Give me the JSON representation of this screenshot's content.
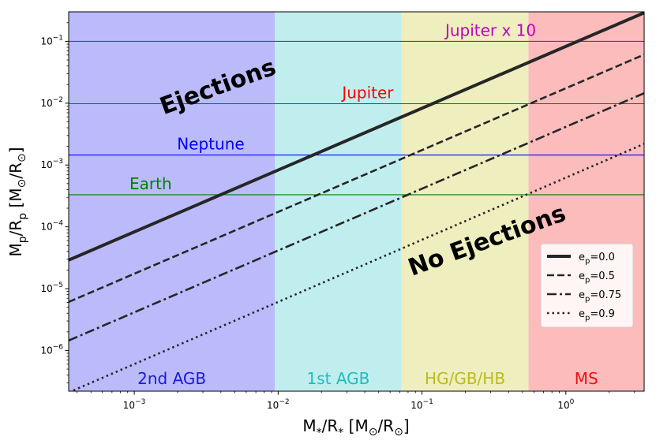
{
  "chart_data": {
    "type": "line",
    "x_scale": "log",
    "y_scale": "log",
    "xlim": [
      0.00035,
      3.5
    ],
    "ylim": [
      2.2e-07,
      0.3
    ],
    "xlabel": {
      "base": "M",
      "sub": "*",
      "mid": "/R",
      "sub2": "*",
      "unit": " [M",
      "sun1": "⊙",
      "unit2": "/R",
      "sun2": "⊙",
      "close": "]"
    },
    "ylabel": {
      "base": "M",
      "sub": "p",
      "mid": "/R",
      "sub2": "p",
      "unit": " [M",
      "sun1": "⊙",
      "unit2": "/R",
      "sun2": "⊙",
      "close": "]"
    },
    "x_ticks": [
      {
        "value": 0.001,
        "base": "10",
        "exp": "−3"
      },
      {
        "value": 0.01,
        "base": "10",
        "exp": "−2"
      },
      {
        "value": 0.1,
        "base": "10",
        "exp": "−1"
      },
      {
        "value": 1,
        "base": "10",
        "exp": "0"
      }
    ],
    "y_ticks": [
      {
        "value": 1e-06,
        "base": "10",
        "exp": "−6"
      },
      {
        "value": 1e-05,
        "base": "10",
        "exp": "−5"
      },
      {
        "value": 0.0001,
        "base": "10",
        "exp": "−4"
      },
      {
        "value": 0.001,
        "base": "10",
        "exp": "−3"
      },
      {
        "value": 0.01,
        "base": "10",
        "exp": "−2"
      },
      {
        "value": 0.1,
        "base": "10",
        "exp": "−1"
      }
    ],
    "regions": [
      {
        "label": "2nd AGB",
        "from": 0.00035,
        "to": 0.0095,
        "fill": "#bbbbfb",
        "text_color": "#1a1adb"
      },
      {
        "label": "1st AGB",
        "from": 0.0095,
        "to": 0.072,
        "fill": "#c0eeee",
        "text_color": "#22bbbb"
      },
      {
        "label": "HG/GB/HB",
        "from": 0.072,
        "to": 0.55,
        "fill": "#eeeebf",
        "text_color": "#bbbb1b"
      },
      {
        "label": "MS",
        "from": 0.55,
        "to": 3.5,
        "fill": "#fcbcbc",
        "text_color": "#ee1111"
      }
    ],
    "reference_lines": [
      {
        "label": "Jupiter x 10",
        "y": 0.1,
        "color": "#bf00bf",
        "label_x": 0.3
      },
      {
        "label": "Jupiter",
        "y": 0.0098,
        "color": "#ff0000",
        "label_x": 0.042
      },
      {
        "label": "Neptune",
        "y": 0.00145,
        "color": "#0000ff",
        "label_x": 0.0034
      },
      {
        "label": "Earth",
        "y": 0.00033,
        "color": "#008000",
        "label_x": 0.0013
      }
    ],
    "series": [
      {
        "name": "e",
        "sub": "p",
        "value": "=0.0",
        "dash": "solid",
        "width": 4,
        "points": [
          [
            0.00035,
            2.9e-05
          ],
          [
            3.5,
            0.29
          ]
        ]
      },
      {
        "name": "e",
        "sub": "p",
        "value": "=0.5",
        "dash": "dashed",
        "width": 2.6,
        "points": [
          [
            0.00035,
            6.1e-06
          ],
          [
            3.5,
            0.061
          ]
        ]
      },
      {
        "name": "e",
        "sub": "p",
        "value": "=0.75",
        "dash": "dashdot",
        "width": 2.6,
        "points": [
          [
            0.00035,
            1.45e-06
          ],
          [
            3.5,
            0.0145
          ]
        ]
      },
      {
        "name": "e",
        "sub": "p",
        "value": "=0.9",
        "dash": "dotted",
        "width": 2.6,
        "points": [
          [
            0.00035,
            2.1e-07
          ],
          [
            3.5,
            0.0022
          ]
        ]
      }
    ],
    "annotations": [
      {
        "text": "Ejections",
        "x": 0.0016,
        "y": 0.0065,
        "rotation": -20
      },
      {
        "text": "No Ejections",
        "x": 0.085,
        "y": 1.6e-05,
        "rotation": -20
      }
    ],
    "legend_position": "lower-right",
    "grid": false
  }
}
